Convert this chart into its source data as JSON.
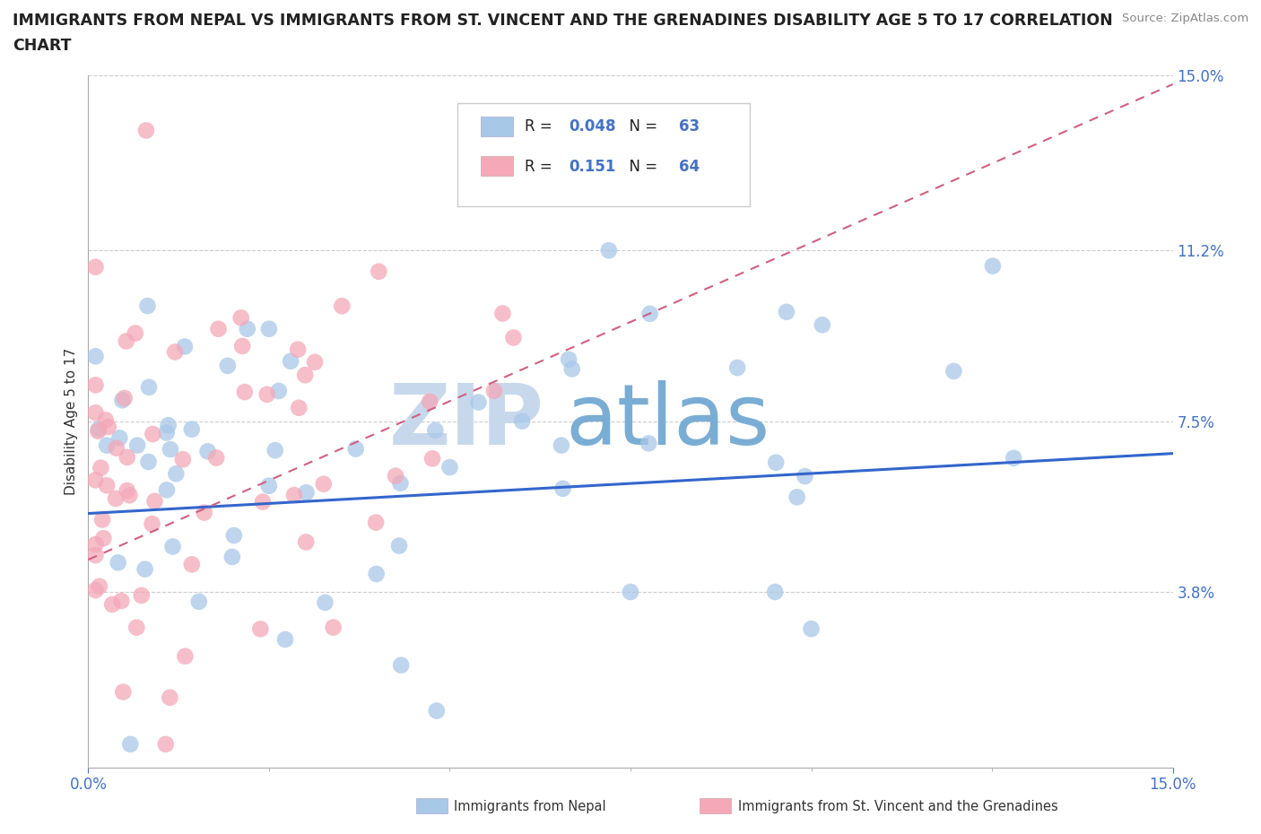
{
  "title_line1": "IMMIGRANTS FROM NEPAL VS IMMIGRANTS FROM ST. VINCENT AND THE GRENADINES DISABILITY AGE 5 TO 17 CORRELATION",
  "title_line2": "CHART",
  "source_text": "Source: ZipAtlas.com",
  "ylabel": "Disability Age 5 to 17",
  "xlim": [
    0.0,
    0.15
  ],
  "ylim": [
    0.0,
    0.15
  ],
  "ytick_values": [
    0.038,
    0.075,
    0.112,
    0.15
  ],
  "ytick_labels": [
    "3.8%",
    "7.5%",
    "11.2%",
    "15.0%"
  ],
  "legend_nepal_R": "0.048",
  "legend_nepal_N": "63",
  "legend_sv_R": "0.151",
  "legend_sv_N": "64",
  "nepal_color": "#a8c8e8",
  "sv_color": "#f4a8b8",
  "nepal_line_color": "#3366cc",
  "sv_line_color": "#d06080",
  "watermark_zip": "ZIP",
  "watermark_atlas": "atlas",
  "watermark_color_zip": "#c8d8ec",
  "watermark_color_atlas": "#7aadd4",
  "background_color": "#ffffff",
  "nepal_trend_x0": 0.0,
  "nepal_trend_y0": 0.055,
  "nepal_trend_x1": 0.15,
  "nepal_trend_y1": 0.068,
  "sv_trend_x0": 0.0,
  "sv_trend_y0": 0.045,
  "sv_trend_x1": 0.15,
  "sv_trend_y1": 0.148
}
